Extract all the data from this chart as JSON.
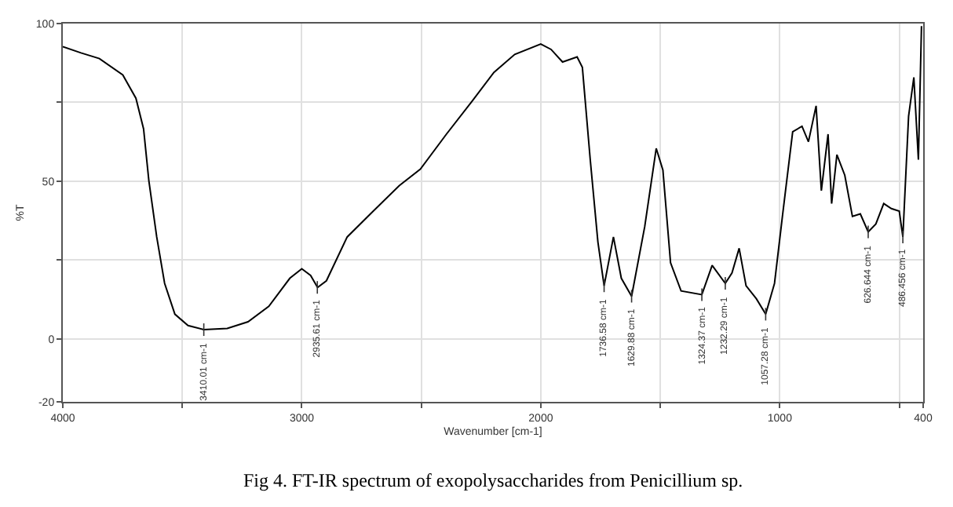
{
  "chart_data": {
    "type": "line",
    "title": "Fig 4. FT-IR spectrum of exopolysaccharides from Penicillium sp.",
    "xlabel": "Wavenumber [cm-1]",
    "ylabel": "%T",
    "xlim": [
      4000,
      400
    ],
    "xticks": [
      4000,
      {
        "value": 3500,
        "label": null
      },
      3000,
      {
        "value": 2500,
        "label": null
      },
      2000,
      {
        "value": 1500,
        "label": null
      },
      1000,
      {
        "value": 500,
        "label": null
      },
      400
    ],
    "ylim": [
      -20,
      100
    ],
    "yticks": [
      -20,
      0,
      {
        "value": 25,
        "label": null
      },
      50,
      {
        "value": 75,
        "label": null
      },
      100
    ],
    "grid": true,
    "marker": "none",
    "line_style": "solid",
    "x": [
      4000,
      3924,
      3847,
      3749,
      3694,
      3662,
      3640,
      3607,
      3574,
      3531,
      3476,
      3410,
      3312,
      3225,
      3138,
      3050,
      3000,
      2963,
      2934,
      2897,
      2810,
      2701,
      2592,
      2504,
      2395,
      2286,
      2196,
      2109,
      2000,
      1957,
      1909,
      1848,
      1826,
      1793,
      1761,
      1735,
      1696,
      1663,
      1620,
      1565,
      1517,
      1489,
      1457,
      1413,
      1326,
      1283,
      1228,
      1200,
      1170,
      1141,
      1098,
      1059,
      1022,
      989,
      946,
      907,
      880,
      848,
      826,
      798,
      783,
      761,
      728,
      696,
      663,
      630,
      598,
      565,
      533,
      500,
      485,
      461,
      439,
      420,
      407
    ],
    "series": [
      {
        "color": "#000000",
        "values": [
          92.7,
          90.7,
          88.9,
          83.7,
          76.3,
          66.6,
          50.2,
          32.3,
          17.6,
          7.8,
          4.2,
          2.9,
          3.3,
          5.4,
          10.3,
          19.2,
          22.2,
          20.1,
          16.3,
          18.4,
          32.3,
          40.5,
          48.6,
          53.8,
          64.9,
          75.5,
          84.5,
          90.2,
          93.5,
          91.8,
          87.8,
          89.4,
          86.1,
          56.8,
          30.7,
          16.8,
          32.3,
          19.2,
          13.5,
          35.6,
          60.4,
          53.5,
          24.1,
          15.2,
          14.0,
          23.3,
          17.6,
          20.9,
          28.7,
          16.8,
          12.7,
          7.8,
          17.6,
          38.8,
          65.7,
          67.4,
          62.5,
          73.9,
          47.0,
          64.9,
          42.9,
          58.4,
          51.9,
          38.8,
          39.6,
          33.9,
          36.4,
          42.9,
          41.3,
          40.5,
          32.3,
          70.6,
          82.9,
          56.8,
          99.2
        ]
      }
    ],
    "annotations": [
      {
        "text": "3410.01 cm-1",
        "x": 3410,
        "y": 2.9
      },
      {
        "text": "2935.61 cm-1",
        "x": 2935,
        "y": 16.3
      },
      {
        "text": "1736.58 cm-1",
        "x": 1735,
        "y": 16.8
      },
      {
        "text": "1629.88 cm-1",
        "x": 1620,
        "y": 13.5
      },
      {
        "text": "1324.37 cm-1",
        "x": 1326,
        "y": 14.0
      },
      {
        "text": "1232.29 cm-1",
        "x": 1228,
        "y": 17.6
      },
      {
        "text": "1057.28 cm-1",
        "x": 1059,
        "y": 7.8
      },
      {
        "text": "626.644 cm-1",
        "x": 630,
        "y": 33.9
      },
      {
        "text": "486.456 cm-1",
        "x": 485,
        "y": 32.3
      }
    ]
  }
}
